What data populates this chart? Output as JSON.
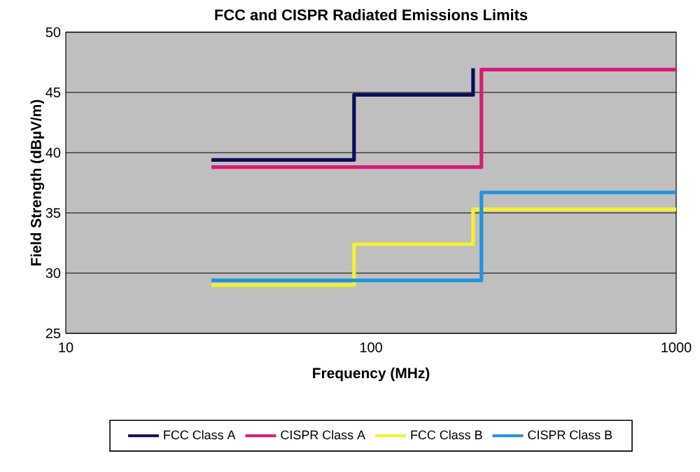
{
  "chart_data": {
    "type": "step",
    "title": "FCC and CISPR Radiated Emissions Limits",
    "xlabel": "Frequency (MHz)",
    "ylabel": "Field Strength (dBµV/m)",
    "log": "x",
    "xlim": [
      10,
      1000
    ],
    "xticks": [
      10,
      100,
      1000
    ],
    "ylim": [
      25,
      50
    ],
    "yticks": [
      25,
      30,
      35,
      40,
      45,
      50
    ],
    "grid": "y",
    "legend": "bottom",
    "series": [
      {
        "name": "FCC Class A",
        "color": "#0d0d5c",
        "x": [
          30,
          88,
          216
        ],
        "values": [
          39.4,
          44.8,
          47.0
        ]
      },
      {
        "name": "CISPR Class A",
        "color": "#d81b72",
        "x": [
          30,
          230,
          1000
        ],
        "values": [
          38.8,
          46.9,
          46.9
        ]
      },
      {
        "name": "FCC Class B",
        "color": "#f5f032",
        "x": [
          30,
          88,
          216,
          1000
        ],
        "values": [
          29.0,
          32.4,
          35.3,
          35.3
        ]
      },
      {
        "name": "CISPR Class B",
        "color": "#1e96dc",
        "x": [
          30,
          230,
          1000
        ],
        "values": [
          29.4,
          36.7,
          36.7
        ]
      }
    ]
  }
}
